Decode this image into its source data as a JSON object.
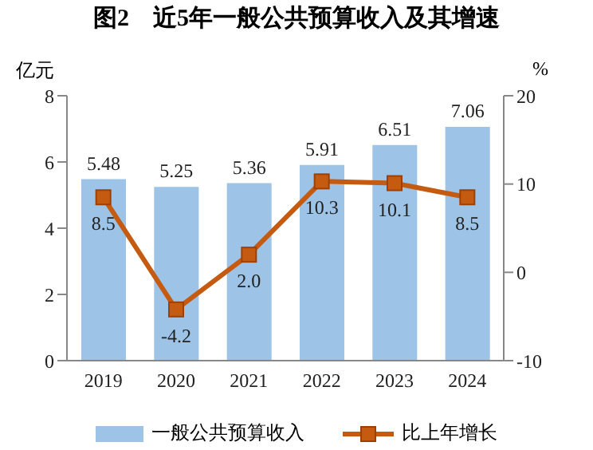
{
  "chart_data": {
    "type": "bar",
    "title": "图2　近5年一般公共预算收入及其增速",
    "categories": [
      "2019",
      "2020",
      "2021",
      "2022",
      "2023",
      "2024"
    ],
    "series": [
      {
        "name": "一般公共预算收入",
        "color": "#9dc3e6",
        "values": [
          5.48,
          5.25,
          5.36,
          5.91,
          6.51,
          7.06
        ]
      },
      {
        "name": "比上年增长",
        "type": "line",
        "axis": "y2",
        "color": "#c55a11",
        "values": [
          8.5,
          -4.2,
          2.0,
          10.3,
          10.1,
          8.5
        ],
        "value_labels": [
          "8.5",
          "-4.2",
          "2.0",
          "10.3",
          "10.1",
          "8.5"
        ]
      }
    ],
    "ylabel": "亿元",
    "y2label": "%",
    "ylim": [
      0,
      8
    ],
    "yticks": [
      0,
      2,
      4,
      6,
      8
    ],
    "y2lim": [
      -10,
      20
    ],
    "y2ticks": [
      -10,
      0,
      10,
      20
    ],
    "data_labels": true,
    "legend": "bottom",
    "marker": "square",
    "line_style": "solid"
  }
}
